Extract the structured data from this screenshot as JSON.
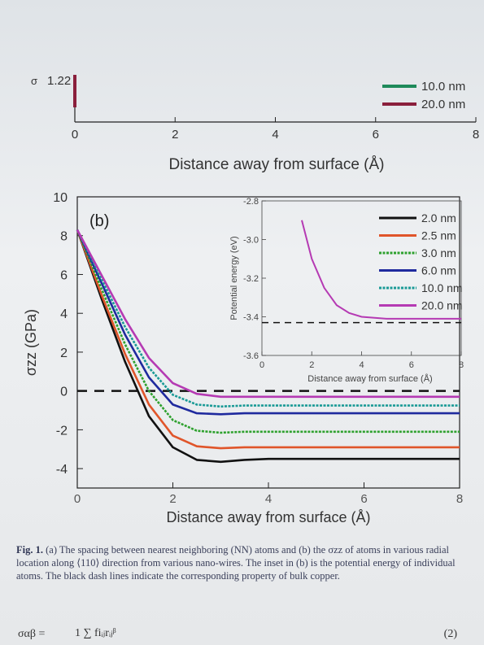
{
  "top_chart_fragment": {
    "y_tick": "1.22",
    "left_glyph": "σ",
    "x_ticks": [
      "0",
      "2",
      "4",
      "6",
      "8"
    ],
    "xlabel": "Distance away from surface (Å)",
    "legend": [
      {
        "label": "10.0 nm",
        "color": "#1e8a5a"
      },
      {
        "label": "20.0 nm",
        "color": "#8a1f3c"
      }
    ]
  },
  "chart_data": {
    "type": "line",
    "panel_label": "(b)",
    "xlabel": "Distance away from surface (Å)",
    "ylabel": "σzz (GPa)",
    "xlim": [
      0,
      8
    ],
    "ylim": [
      -5,
      10
    ],
    "x_ticks": [
      "0",
      "2",
      "4",
      "6",
      "8"
    ],
    "y_ticks": [
      "10",
      "8",
      "6",
      "4",
      "2",
      "0",
      "-2",
      "-4"
    ],
    "series": [
      {
        "name": "2.0 nm",
        "color": "#111111",
        "dash": "solid",
        "x": [
          0,
          0.5,
          1,
          1.5,
          2,
          2.5,
          3,
          3.5,
          4,
          5,
          6,
          7,
          8
        ],
        "y": [
          8.3,
          4.8,
          1.5,
          -1.3,
          -2.9,
          -3.55,
          -3.65,
          -3.55,
          -3.5,
          -3.5,
          -3.5,
          -3.5,
          -3.5
        ]
      },
      {
        "name": "2.5 nm",
        "color": "#e0552a",
        "dash": "solid",
        "x": [
          0,
          0.5,
          1,
          1.5,
          2,
          2.5,
          3,
          3.5,
          4,
          5,
          6,
          7,
          8
        ],
        "y": [
          8.3,
          5.0,
          1.9,
          -0.7,
          -2.3,
          -2.85,
          -2.95,
          -2.9,
          -2.9,
          -2.9,
          -2.9,
          -2.9,
          -2.9
        ]
      },
      {
        "name": "3.0 nm",
        "color": "#2ea12e",
        "dash": "dotted",
        "x": [
          0,
          0.5,
          1,
          1.5,
          2,
          2.5,
          3,
          3.5,
          4,
          5,
          6,
          7,
          8
        ],
        "y": [
          8.3,
          5.3,
          2.4,
          0.0,
          -1.5,
          -2.05,
          -2.15,
          -2.1,
          -2.1,
          -2.1,
          -2.1,
          -2.1,
          -2.1
        ]
      },
      {
        "name": "6.0 nm",
        "color": "#1f2a9e",
        "dash": "solid",
        "x": [
          0,
          0.5,
          1,
          1.5,
          2,
          2.5,
          3,
          3.5,
          4,
          5,
          6,
          7,
          8
        ],
        "y": [
          8.3,
          5.6,
          2.9,
          0.7,
          -0.7,
          -1.15,
          -1.2,
          -1.15,
          -1.15,
          -1.15,
          -1.15,
          -1.15,
          -1.15
        ]
      },
      {
        "name": "10.0 nm",
        "color": "#1a9a96",
        "dash": "dotted",
        "x": [
          0,
          0.5,
          1,
          1.5,
          2,
          2.5,
          3,
          3.5,
          4,
          5,
          6,
          7,
          8
        ],
        "y": [
          8.3,
          5.8,
          3.3,
          1.2,
          -0.2,
          -0.7,
          -0.8,
          -0.75,
          -0.75,
          -0.75,
          -0.75,
          -0.75,
          -0.75
        ]
      },
      {
        "name": "20.0 nm",
        "color": "#b53ab3",
        "dash": "solid",
        "x": [
          0,
          0.5,
          1,
          1.5,
          2,
          2.5,
          3,
          3.5,
          4,
          5,
          6,
          7,
          8
        ],
        "y": [
          8.3,
          6.0,
          3.7,
          1.7,
          0.4,
          -0.15,
          -0.3,
          -0.3,
          -0.3,
          -0.3,
          -0.3,
          -0.3,
          -0.3
        ]
      }
    ],
    "reference_line": {
      "y": 0,
      "color": "#111111",
      "style": "dashed"
    },
    "legend_position": "top-right",
    "inset": {
      "ylabel": "Potential energy (eV)",
      "xlabel": "Distance away from surface (Å)",
      "xlim": [
        0,
        8
      ],
      "ylim": [
        -3.6,
        -2.8
      ],
      "x_ticks": [
        "0",
        "2",
        "4",
        "6",
        "8"
      ],
      "y_ticks": [
        "-2.8",
        "-3.0",
        "-3.2",
        "-3.4",
        "-3.6"
      ],
      "curve": {
        "color": "#b53ab3",
        "x": [
          1.6,
          2,
          2.5,
          3,
          3.5,
          4,
          5,
          6,
          7,
          8
        ],
        "y": [
          -2.9,
          -3.1,
          -3.25,
          -3.34,
          -3.38,
          -3.4,
          -3.41,
          -3.41,
          -3.41,
          -3.41
        ]
      },
      "reference_line": {
        "y": -3.43,
        "color": "#111111",
        "style": "dashed"
      }
    }
  },
  "caption": {
    "label": "Fig. 1.",
    "text": "(a) The spacing between nearest neighboring (NN) atoms and (b) the σzz of atoms in various radial location along ⟨110⟩ direction from various nano-wires. The inset in (b) is the potential energy of individual atoms. The black dash lines indicate the corresponding property of bulk copper."
  },
  "formula": {
    "lhs": "σαβ =",
    "mid": "1  ∑ fiᵢⱼrᵢⱼᵝ",
    "eqnum": "(2)"
  }
}
